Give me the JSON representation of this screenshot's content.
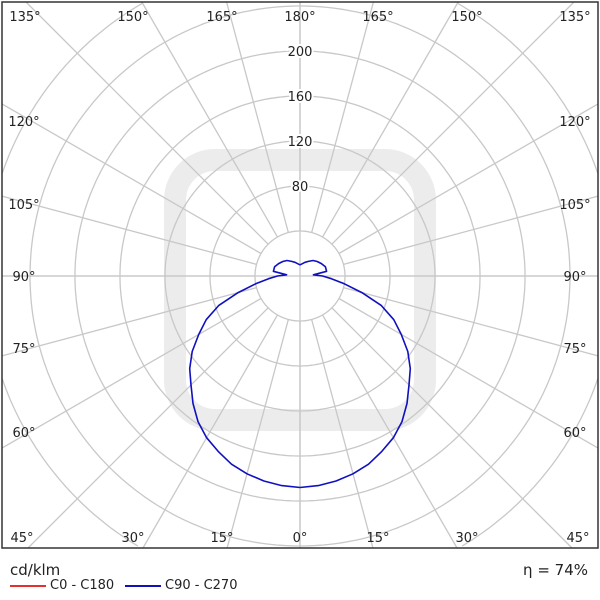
{
  "chart_data": {
    "type": "polar",
    "unit_label": "cd/klm",
    "efficiency_label": "η = 74%",
    "radial_ticks": [
      80,
      120,
      160,
      200
    ],
    "radial_rings": [
      40,
      80,
      120,
      160,
      200,
      240,
      280
    ],
    "angle_labels": {
      "top": [
        "135°",
        "150°",
        "165°",
        "180°",
        "165°",
        "150°",
        "135°"
      ],
      "left": [
        "120°",
        "105°",
        "90°",
        "75°",
        "60°"
      ],
      "right": [
        "120°",
        "105°",
        "90°",
        "75°",
        "60°"
      ],
      "bottom": [
        "45°",
        "30°",
        "15°",
        "0°",
        "15°",
        "30°",
        "45°"
      ]
    },
    "grid": true,
    "legend_placement": "bottom-left",
    "angles": [
      0,
      5,
      10,
      15,
      20,
      25,
      30,
      35,
      40,
      45,
      50,
      55,
      60,
      65,
      70,
      75,
      80,
      85,
      90,
      95,
      100,
      110,
      120,
      130,
      140,
      150,
      160,
      170,
      180
    ],
    "series": [
      {
        "name": "C0 - C180",
        "color": "#e53030",
        "values": null
      },
      {
        "name": "C90 - C270",
        "color": "#1010c0",
        "symmetric": true,
        "values": [
          188,
          187,
          185,
          182,
          178,
          172,
          166,
          158,
          148,
          137,
          128,
          117,
          104,
          92,
          77,
          57,
          40,
          28,
          20,
          12,
          24,
          24,
          22,
          20,
          18,
          15,
          13,
          11,
          10
        ]
      }
    ]
  }
}
